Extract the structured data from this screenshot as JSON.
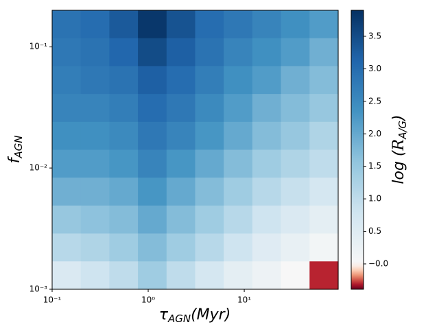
{
  "chart_data": {
    "type": "heatmap",
    "x_label": {
      "symbol": "τ",
      "subscript": "AGN",
      "rest": "(Myr)"
    },
    "y_label": {
      "symbol": "f",
      "subscript": "AGN"
    },
    "colorbar_label": {
      "prefix": "log (",
      "symbol": "R",
      "subscript": "A/G",
      "suffix": ")"
    },
    "xscale": "log",
    "yscale": "log",
    "xlim": [
      0.1,
      95
    ],
    "ylim": [
      0.001,
      0.2
    ],
    "xticks": [
      {
        "value": 0.1,
        "label": "10⁻¹"
      },
      {
        "value": 1,
        "label": "10⁰"
      },
      {
        "value": 10,
        "label": "10¹"
      }
    ],
    "yticks": [
      {
        "value": 0.001,
        "label": "10⁻³"
      },
      {
        "value": 0.01,
        "label": "10⁻²"
      },
      {
        "value": 0.1,
        "label": "10⁻¹"
      }
    ],
    "clim": [
      -0.39,
      3.9
    ],
    "color_center": 0,
    "colorscale": [
      "#67001f",
      "#b2182b",
      "#d6604d",
      "#f4a582",
      "#fddbc7",
      "#f7f7f7",
      "#d1e5f0",
      "#92c5de",
      "#4393c3",
      "#2166ac",
      "#053061"
    ],
    "cticks": [
      {
        "value": 0,
        "label": "−0.0"
      },
      0.5,
      {
        "value": 1,
        "label": "1.0"
      },
      1.5,
      {
        "value": 2,
        "label": "2.0"
      },
      2.5,
      {
        "value": 3,
        "label": "3.0"
      },
      3.5
    ],
    "z": [
      [
        2.9,
        3.0,
        3.3,
        3.8,
        3.4,
        3.0,
        2.8,
        2.6,
        2.4,
        2.2
      ],
      [
        2.8,
        2.9,
        3.1,
        3.5,
        3.2,
        2.9,
        2.6,
        2.4,
        2.2,
        1.9
      ],
      [
        2.7,
        2.8,
        2.9,
        3.2,
        3.0,
        2.7,
        2.4,
        2.2,
        1.9,
        1.7
      ],
      [
        2.6,
        2.6,
        2.7,
        3.0,
        2.8,
        2.5,
        2.2,
        1.9,
        1.7,
        1.5
      ],
      [
        2.4,
        2.4,
        2.5,
        2.8,
        2.6,
        2.3,
        2.0,
        1.7,
        1.5,
        1.2
      ],
      [
        2.2,
        2.2,
        2.3,
        2.6,
        2.3,
        2.0,
        1.7,
        1.4,
        1.2,
        1.0
      ],
      [
        1.9,
        1.9,
        2.0,
        2.3,
        2.0,
        1.7,
        1.4,
        1.1,
        0.9,
        0.7
      ],
      [
        1.5,
        1.6,
        1.7,
        2.0,
        1.7,
        1.4,
        1.1,
        0.8,
        0.6,
        0.4
      ],
      [
        1.1,
        1.2,
        1.4,
        1.7,
        1.4,
        1.1,
        0.8,
        0.5,
        0.3,
        0.1
      ],
      [
        0.6,
        0.8,
        1.0,
        1.4,
        1.0,
        0.7,
        0.4,
        0.2,
        0.0,
        -0.3
      ]
    ]
  }
}
